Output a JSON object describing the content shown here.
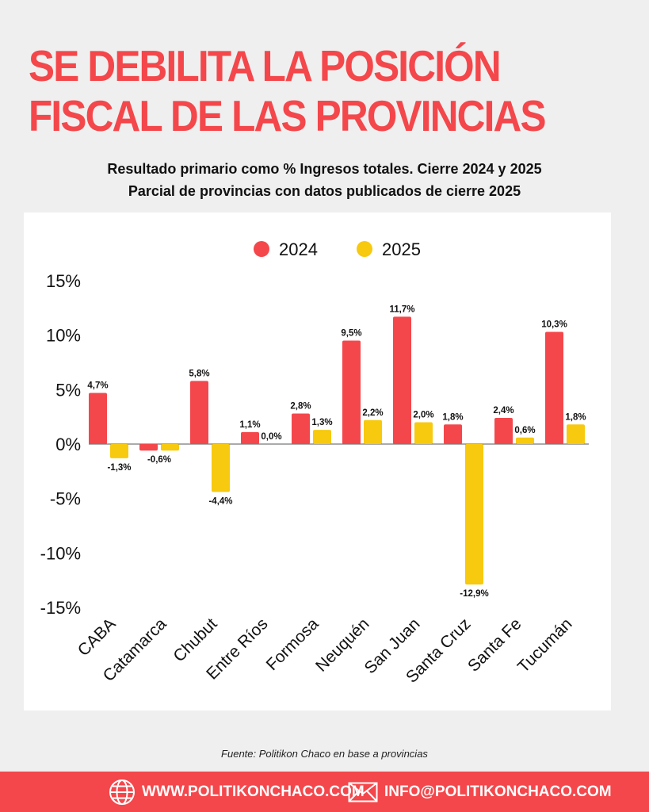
{
  "header": {
    "title": "SE DEBILITA LA POSICIÓN FISCAL DE LAS PROVINCIAS",
    "subtitle1": "Resultado primario como % Ingresos totales. Cierre 2024 y 2025",
    "subtitle2": "Parcial de provincias con datos publicados de cierre 2025"
  },
  "chart_data": {
    "type": "bar",
    "categories": [
      "CABA",
      "Catamarca",
      "Chubut",
      "Entre Ríos",
      "Formosa",
      "Neuquén",
      "San Juan",
      "Santa Cruz",
      "Santa Fe",
      "Tucumán"
    ],
    "series": [
      {
        "name": "2024",
        "color": "#f4474b",
        "values": [
          4.7,
          -0.6,
          5.8,
          1.1,
          2.8,
          9.5,
          11.7,
          1.8,
          2.4,
          10.3
        ],
        "labels": [
          "4,7%",
          "-0,6%",
          "5,8%",
          "1,1%",
          "2,8%",
          "9,5%",
          "11,7%",
          "1,8%",
          "2,4%",
          "10,3%"
        ]
      },
      {
        "name": "2025",
        "color": "#f7c90f",
        "values": [
          -1.3,
          -0.6,
          -4.4,
          0.0,
          1.3,
          2.2,
          2.0,
          -12.9,
          0.6,
          1.8
        ],
        "labels": [
          "-1,3%",
          "",
          "-4,4%",
          "0,0%",
          "1,3%",
          "2,2%",
          "2,0%",
          "-12,9%",
          "0,6%",
          "1,8%"
        ]
      }
    ],
    "ylim": [
      -15,
      15
    ],
    "yticks": [
      15,
      10,
      5,
      0,
      -5,
      -10,
      -15
    ],
    "ytick_labels": [
      "15%",
      "10%",
      "5%",
      "0%",
      "-5%",
      "-10%",
      "-15%"
    ],
    "legend_position": "top-center",
    "grid": false
  },
  "source": "Fuente: Politikon Chaco en base a provincias",
  "footer": {
    "website": "WWW.POLITIKONCHACO.COM",
    "email": "INFO@POLITIKONCHACO.COM",
    "web_icon": "globe-icon",
    "mail_icon": "envelope-icon"
  }
}
